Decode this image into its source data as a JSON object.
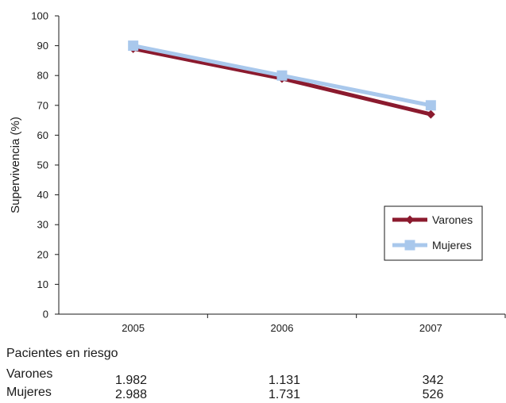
{
  "chart_data": {
    "type": "line",
    "categories": [
      "2005",
      "2006",
      "2007"
    ],
    "series": [
      {
        "name": "Varones",
        "values": [
          89,
          79,
          67
        ],
        "color": "#8B1A2E",
        "marker": "diamond"
      },
      {
        "name": "Mujeres",
        "values": [
          90,
          80,
          70
        ],
        "color": "#A9C8EC",
        "marker": "square"
      }
    ],
    "ylabel": "Supervivencia (%)",
    "ylim": [
      0,
      100
    ],
    "yticks": [
      0,
      10,
      20,
      30,
      40,
      50,
      60,
      70,
      80,
      90,
      100
    ],
    "grid": false,
    "legend_position": "right"
  },
  "risk_table": {
    "title": "Pacientes en riesgo",
    "rows": [
      {
        "label": "Varones",
        "values": [
          "1.982",
          "1.131",
          "342"
        ]
      },
      {
        "label": "Mujeres",
        "values": [
          "2.988",
          "1.731",
          "526"
        ]
      }
    ]
  }
}
